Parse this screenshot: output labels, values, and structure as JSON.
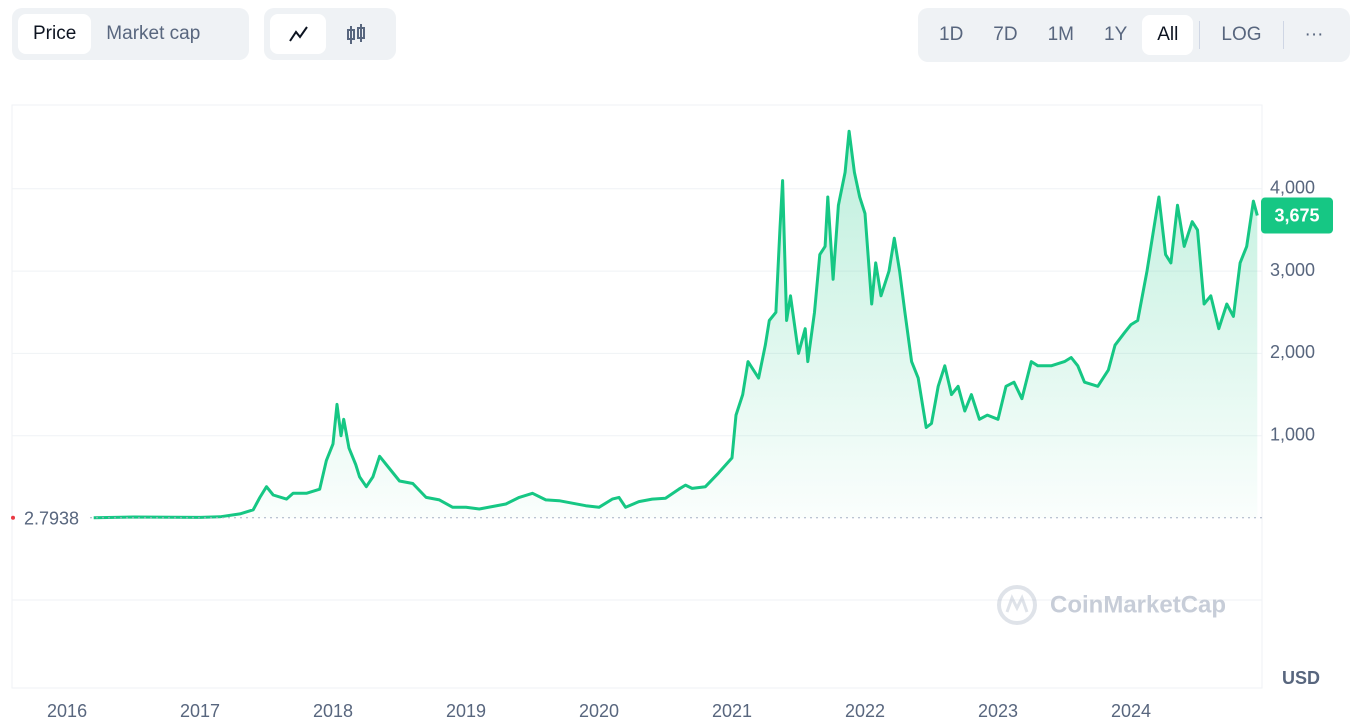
{
  "toolbar": {
    "metric": [
      "Price",
      "Market cap"
    ],
    "ranges": [
      "1D",
      "7D",
      "1M",
      "1Y",
      "All"
    ],
    "scale": "LOG",
    "more": "···"
  },
  "chart_data": {
    "type": "line",
    "y_unit": "USD",
    "watermark": "CoinMarketCap",
    "x": [
      2016.2,
      2016.5,
      2016.8,
      2017.0,
      2017.15,
      2017.3,
      2017.4,
      2017.45,
      2017.5,
      2017.55,
      2017.65,
      2017.7,
      2017.8,
      2017.9,
      2017.95,
      2018.0,
      2018.03,
      2018.06,
      2018.08,
      2018.12,
      2018.17,
      2018.2,
      2018.25,
      2018.3,
      2018.35,
      2018.4,
      2018.5,
      2018.6,
      2018.7,
      2018.8,
      2018.9,
      2019.0,
      2019.1,
      2019.2,
      2019.3,
      2019.4,
      2019.5,
      2019.6,
      2019.7,
      2019.8,
      2019.9,
      2020.0,
      2020.1,
      2020.15,
      2020.2,
      2020.3,
      2020.4,
      2020.5,
      2020.6,
      2020.65,
      2020.7,
      2020.8,
      2020.9,
      2021.0,
      2021.03,
      2021.08,
      2021.12,
      2021.2,
      2021.25,
      2021.28,
      2021.33,
      2021.36,
      2021.38,
      2021.41,
      2021.44,
      2021.5,
      2021.55,
      2021.57,
      2021.62,
      2021.66,
      2021.7,
      2021.72,
      2021.76,
      2021.8,
      2021.85,
      2021.88,
      2021.92,
      2021.96,
      2022.0,
      2022.05,
      2022.08,
      2022.12,
      2022.18,
      2022.22,
      2022.26,
      2022.3,
      2022.35,
      2022.4,
      2022.46,
      2022.5,
      2022.55,
      2022.6,
      2022.65,
      2022.7,
      2022.75,
      2022.8,
      2022.86,
      2022.92,
      2023.0,
      2023.06,
      2023.12,
      2023.18,
      2023.25,
      2023.3,
      2023.4,
      2023.5,
      2023.55,
      2023.6,
      2023.65,
      2023.75,
      2023.83,
      2023.88,
      2023.95,
      2024.0,
      2024.05,
      2024.12,
      2024.18,
      2024.21,
      2024.26,
      2024.3,
      2024.35,
      2024.4,
      2024.46,
      2024.5,
      2024.55,
      2024.6,
      2024.66,
      2024.72,
      2024.77,
      2024.82,
      2024.87,
      2024.92,
      2024.95
    ],
    "series": [
      {
        "name": "Price",
        "color": "#16c784",
        "values": [
          3,
          12,
          10,
          8,
          15,
          50,
          100,
          250,
          380,
          280,
          230,
          300,
          300,
          350,
          700,
          900,
          1380,
          1000,
          1200,
          850,
          650,
          500,
          380,
          500,
          750,
          650,
          450,
          420,
          250,
          220,
          130,
          130,
          110,
          140,
          170,
          250,
          300,
          220,
          210,
          180,
          150,
          130,
          230,
          250,
          130,
          200,
          230,
          240,
          350,
          400,
          360,
          380,
          550,
          730,
          1250,
          1500,
          1900,
          1700,
          2100,
          2400,
          2500,
          3500,
          4100,
          2400,
          2700,
          2000,
          2300,
          1900,
          2500,
          3200,
          3300,
          3900,
          2900,
          3800,
          4200,
          4700,
          4200,
          3900,
          3700,
          2600,
          3100,
          2700,
          3000,
          3400,
          3000,
          2500,
          1900,
          1700,
          1100,
          1150,
          1600,
          1850,
          1500,
          1600,
          1300,
          1500,
          1200,
          1250,
          1200,
          1600,
          1650,
          1450,
          1900,
          1850,
          1850,
          1900,
          1950,
          1850,
          1650,
          1600,
          1800,
          2100,
          2250,
          2350,
          2400,
          3000,
          3600,
          3900,
          3200,
          3100,
          3800,
          3300,
          3600,
          3500,
          2600,
          2700,
          2300,
          2600,
          2450,
          3100,
          3300,
          3850,
          3675
        ]
      }
    ],
    "xlim": [
      2015.586,
      2024.985
    ],
    "xticks": [
      2016,
      2017,
      2018,
      2019,
      2020,
      2021,
      2022,
      2023,
      2024
    ],
    "ylim": [
      -996,
      5018
    ],
    "yticks": [
      {
        "value": 1000,
        "label": "1,000"
      },
      {
        "value": 2000,
        "label": "2,000"
      },
      {
        "value": 3000,
        "label": "3,000"
      },
      {
        "value": 4000,
        "label": "4,000"
      }
    ],
    "grid": true,
    "annotations": [
      {
        "value": 2.7938
      },
      {
        "value": 3675,
        "label": "3,675"
      }
    ]
  }
}
